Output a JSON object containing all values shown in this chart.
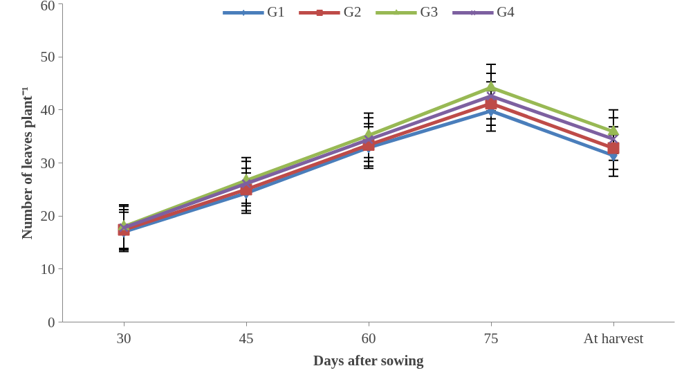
{
  "chart_data": {
    "type": "line",
    "xlabel": "Days after sowing",
    "ylabel": "Number of leaves plant⁻¹",
    "categories": [
      "30",
      "45",
      "60",
      "75",
      "At harvest"
    ],
    "ylim": [
      0,
      60
    ],
    "yticks": [
      0,
      10,
      20,
      30,
      40,
      50,
      60
    ],
    "grid": false,
    "legend": "top",
    "line_style": "solid",
    "series": [
      {
        "name": "G1",
        "color": "#4a7ebb",
        "marker": "diamond",
        "values": [
          17.0,
          24.3,
          32.9,
          39.8,
          31.4
        ],
        "errors": [
          3.7,
          3.8,
          3.9,
          3.8,
          3.9
        ]
      },
      {
        "name": "G2",
        "color": "#be4b48",
        "marker": "square",
        "values": [
          17.4,
          25.0,
          33.4,
          41.2,
          32.8
        ],
        "errors": [
          3.8,
          4.0,
          4.0,
          4.1,
          4.0
        ]
      },
      {
        "name": "G3",
        "color": "#98b954",
        "marker": "triangle",
        "values": [
          18.0,
          26.7,
          35.2,
          44.2,
          35.9
        ],
        "errors": [
          4.1,
          4.3,
          4.2,
          4.4,
          4.1
        ]
      },
      {
        "name": "G4",
        "color": "#7d60a0",
        "marker": "cross",
        "values": [
          17.8,
          26.1,
          34.4,
          42.6,
          34.5
        ],
        "errors": [
          4.0,
          4.2,
          4.1,
          4.3,
          4.0
        ]
      }
    ]
  }
}
